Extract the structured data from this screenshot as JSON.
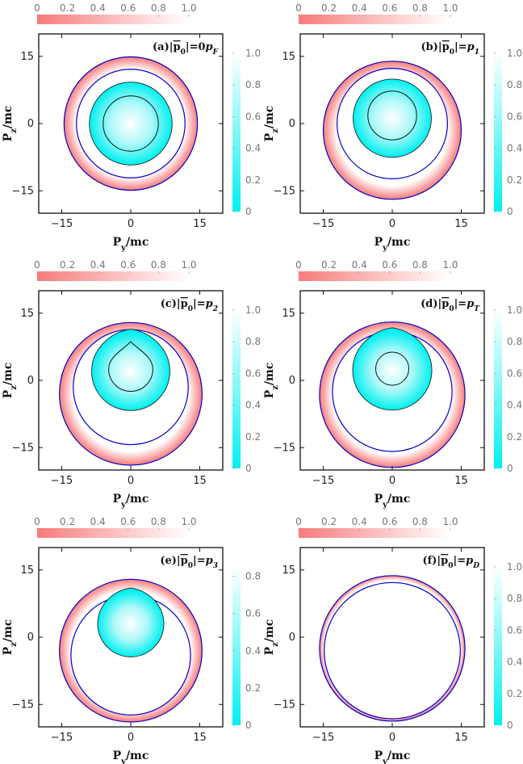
{
  "figure": {
    "axis_labels": {
      "x": "P",
      "x_sub": "y",
      "x_unit": "/mc",
      "y": "P",
      "y_sub": "z",
      "y_unit": "/mc"
    },
    "colors": {
      "cyan": "#00f0f0",
      "pink": "#f77b7b",
      "blue_contour": "#0000cc",
      "black_contour": "#111111"
    },
    "horizontal_colorbar": {
      "ticks": [
        "0",
        "0.2",
        "0.4",
        "0.6",
        "0.8",
        "1.0"
      ],
      "range": [
        0,
        1
      ]
    }
  },
  "chart_data": [
    {
      "type": "heatmap",
      "id": "a",
      "title": "(a)|p0|=0pF",
      "label_prefix": "(a)|",
      "label_vec": "p",
      "label_vec_sub": "0",
      "label_eq": "|=0",
      "label_var": "p",
      "label_var_sub": "F",
      "xlim": [
        -20,
        20
      ],
      "ylim": [
        -20,
        20
      ],
      "xticks": [
        "-15",
        "0",
        "15"
      ],
      "yticks": [
        "-15",
        "0",
        "15"
      ],
      "pink_outer_radius": 14.5,
      "pink_inner_radius": 11.8,
      "pink_center_y": 0,
      "blue_outer_radius": 14.5,
      "blue_inner_radius": 11.8,
      "blue_inner_center_y": 0,
      "cyan_region": {
        "center_y": 0,
        "radius": 9,
        "cusp": false
      },
      "black_inner": {
        "center_y": 0,
        "radius": 6.0,
        "cusp": false
      },
      "vertical_colorbar": {
        "ticks": [
          "0",
          "0.2",
          "0.4",
          "0.6",
          "0.8",
          "1.0"
        ],
        "max": 1.0
      }
    },
    {
      "type": "heatmap",
      "id": "b",
      "title": "(b)|p0|=p1",
      "label_prefix": "(b)|",
      "label_vec": "p",
      "label_vec_sub": "0",
      "label_eq": "|=",
      "label_var": "p",
      "label_var_sub": "1",
      "xlim": [
        -20,
        20
      ],
      "ylim": [
        -20,
        20
      ],
      "xticks": [
        "-15",
        "0",
        "15"
      ],
      "yticks": [
        "-15",
        "0",
        "15"
      ],
      "pink_outer_radius": 15.0,
      "pink_inner_radius": 12.0,
      "pink_center_y": -1.5,
      "blue_outer_radius": 15.0,
      "blue_inner_radius": 12.0,
      "blue_inner_center_y": 0,
      "cyan_region": {
        "center_y": 1.2,
        "radius": 8.5,
        "cusp": false
      },
      "black_inner": {
        "center_y": 1.8,
        "radius": 5.3,
        "cusp": false
      },
      "vertical_colorbar": {
        "ticks": [
          "0",
          "0.2",
          "0.4",
          "0.6",
          "0.8",
          "1.0"
        ],
        "max": 1.0
      }
    },
    {
      "type": "heatmap",
      "id": "c",
      "title": "(c)|p0|=p2",
      "label_prefix": "(c)|",
      "label_vec": "p",
      "label_vec_sub": "0",
      "label_eq": "|=",
      "label_var": "p",
      "label_var_sub": "2",
      "xlim": [
        -20,
        20
      ],
      "ylim": [
        -20,
        20
      ],
      "xticks": [
        "-15",
        "0",
        "15"
      ],
      "yticks": [
        "-15",
        "0",
        "15"
      ],
      "pink_outer_radius": 15.5,
      "pink_inner_radius": 12.5,
      "pink_center_y": -3.0,
      "blue_outer_radius": 15.5,
      "blue_inner_radius": 12.5,
      "blue_inner_center_y": -1.5,
      "cyan_region": {
        "center_y": 2.0,
        "radius": 8.5,
        "cusp": true
      },
      "black_inner": {
        "center_y": 2.5,
        "radius": 4.8,
        "cusp": true
      },
      "vertical_colorbar": {
        "ticks": [
          "0",
          "0.2",
          "0.4",
          "0.6",
          "0.8",
          "1.0"
        ],
        "max": 1.0
      }
    },
    {
      "type": "heatmap",
      "id": "d",
      "title": "(d)|p0|=pT",
      "label_prefix": "(d)|",
      "label_vec": "p",
      "label_vec_sub": "0",
      "label_eq": "|=",
      "label_var": "p",
      "label_var_sub": "T",
      "xlim": [
        -20,
        20
      ],
      "ylim": [
        -20,
        20
      ],
      "xticks": [
        "-15",
        "0",
        "15"
      ],
      "yticks": [
        "-15",
        "0",
        "15"
      ],
      "pink_outer_radius": 15.8,
      "pink_inner_radius": 13.0,
      "pink_center_y": -3.2,
      "blue_outer_radius": 15.8,
      "blue_inner_radius": 13.0,
      "blue_inner_center_y": -2.5,
      "cyan_region": {
        "center_y": 2.2,
        "radius": 8.6,
        "cusp": true
      },
      "black_inner": {
        "center_y": 2.6,
        "radius": 3.6,
        "cusp": false
      },
      "vertical_colorbar": {
        "ticks": [
          "0",
          "0.2",
          "0.4",
          "0.6",
          "0.8",
          "1.0"
        ],
        "max": 1.0
      }
    },
    {
      "type": "heatmap",
      "id": "e",
      "title": "(e)|p0|=p3",
      "label_prefix": "(e)|",
      "label_vec": "p",
      "label_vec_sub": "0",
      "label_eq": "|=",
      "label_var": "p",
      "label_var_sub": "3",
      "xlim": [
        -20,
        20
      ],
      "ylim": [
        -20,
        20
      ],
      "xticks": [
        "-15",
        "0",
        "15"
      ],
      "yticks": [
        "-15",
        "0",
        "15"
      ],
      "pink_outer_radius": 15.5,
      "pink_inner_radius": 13.0,
      "pink_center_y": -3.0,
      "blue_outer_radius": 15.5,
      "blue_inner_radius": 13.0,
      "blue_inner_center_y": -4.0,
      "cyan_region": {
        "center_y": 3.0,
        "radius": 7.2,
        "cusp": true
      },
      "black_inner": null,
      "vertical_colorbar": {
        "ticks": [
          "0",
          "0.2",
          "0.4",
          "0.6",
          "0.8"
        ],
        "max": 0.85
      }
    },
    {
      "type": "heatmap",
      "id": "f",
      "title": "(f)|p0|=pD",
      "label_prefix": "(f)|",
      "label_vec": "p",
      "label_vec_sub": "0",
      "label_eq": "|=",
      "label_var": "p",
      "label_var_sub": "D",
      "xlim": [
        -20,
        20
      ],
      "ylim": [
        -20,
        20
      ],
      "xticks": [
        "-15",
        "0",
        "15"
      ],
      "yticks": [
        "-15",
        "0",
        "15"
      ],
      "pink_outer_radius": 15.8,
      "pink_inner_radius": 14.8,
      "pink_center_y": -2.5,
      "blue_outer_radius": 15.8,
      "blue_inner_radius": 14.8,
      "blue_inner_center_y": -3.0,
      "cyan_region": null,
      "black_inner": null,
      "vertical_colorbar": {
        "ticks": [
          "0",
          "0.2",
          "0.4",
          "0.6",
          "0.8",
          "1.0"
        ],
        "max": 1.0
      }
    }
  ]
}
